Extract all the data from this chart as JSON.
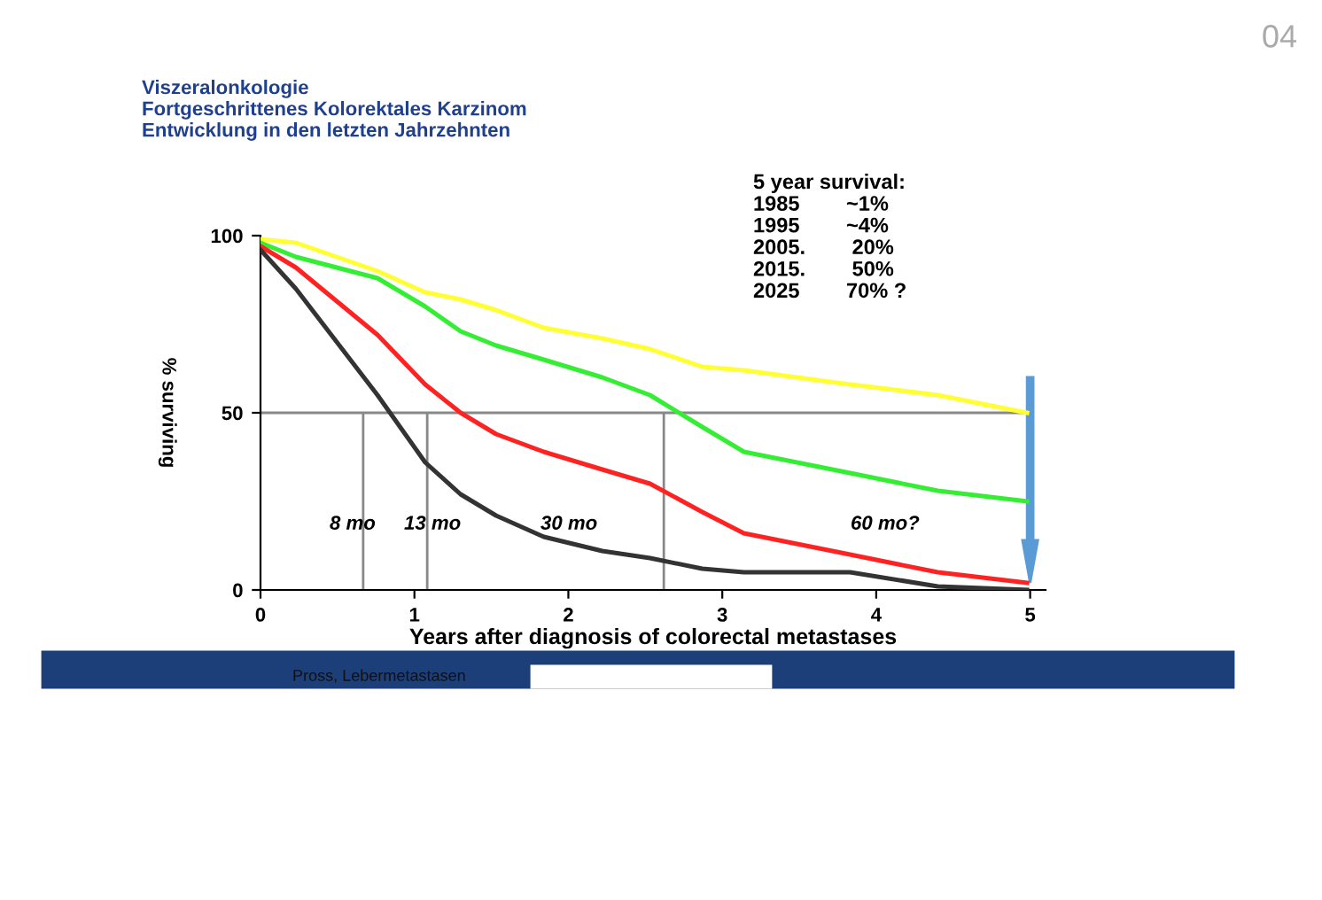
{
  "chart_data": {
    "type": "line",
    "title": "Viszeralonkologie\nFortgeschrittenes Kolorektales Karzinom\nEntwicklung in den letzten Jahrzehnten",
    "xlabel": "Years after diagnosis of colorectal metastases",
    "ylabel": "% surviving",
    "x": [
      0,
      0.23,
      0.76,
      1.07,
      1.3,
      1.53,
      1.84,
      2.22,
      2.53,
      2.87,
      3.14,
      3.83,
      4.4,
      4.98
    ],
    "series": [
      {
        "color": "#ffff33",
        "values": [
          99,
          98,
          90,
          84,
          82,
          79,
          74,
          71,
          68,
          63,
          62,
          58,
          55,
          50
        ]
      },
      {
        "color": "#33ee33",
        "values": [
          98,
          94,
          88,
          80,
          73,
          69,
          65,
          60,
          55,
          46,
          39,
          33,
          28,
          25
        ]
      },
      {
        "color": "#ff2222",
        "values": [
          97,
          91,
          72,
          58,
          50,
          44,
          39,
          34,
          30,
          22,
          16,
          10,
          5,
          2
        ]
      },
      {
        "color": "#333333",
        "values": [
          96,
          85,
          55,
          36,
          27,
          21,
          15,
          11,
          9,
          6,
          5,
          5,
          1,
          0
        ]
      }
    ],
    "xlim": [
      0,
      5.1
    ],
    "ylim": [
      0,
      100
    ],
    "xticks": [
      0,
      1,
      2,
      3,
      4,
      5
    ],
    "yticks": [
      0,
      50,
      100
    ],
    "grid": false,
    "marker": "none",
    "line_style": "solid",
    "ref_lines": [
      {
        "axis": "y",
        "value": 50,
        "color": "#888888"
      },
      {
        "axis": "x",
        "value": 0.667,
        "color": "#888888"
      },
      {
        "axis": "x",
        "value": 1.083,
        "color": "#888888"
      },
      {
        "axis": "x",
        "value": 2.62,
        "color": "#888888"
      }
    ],
    "annotations": [
      "8 mo",
      "13 mo",
      "30 mo",
      "60 mo?",
      "5 year survival:\n1985        ~1%\n1995        ~4%\n2005.        20%\n2015.        50%\n2025        70% ?",
      "Pross, Lebermetastasen",
      "04"
    ]
  }
}
